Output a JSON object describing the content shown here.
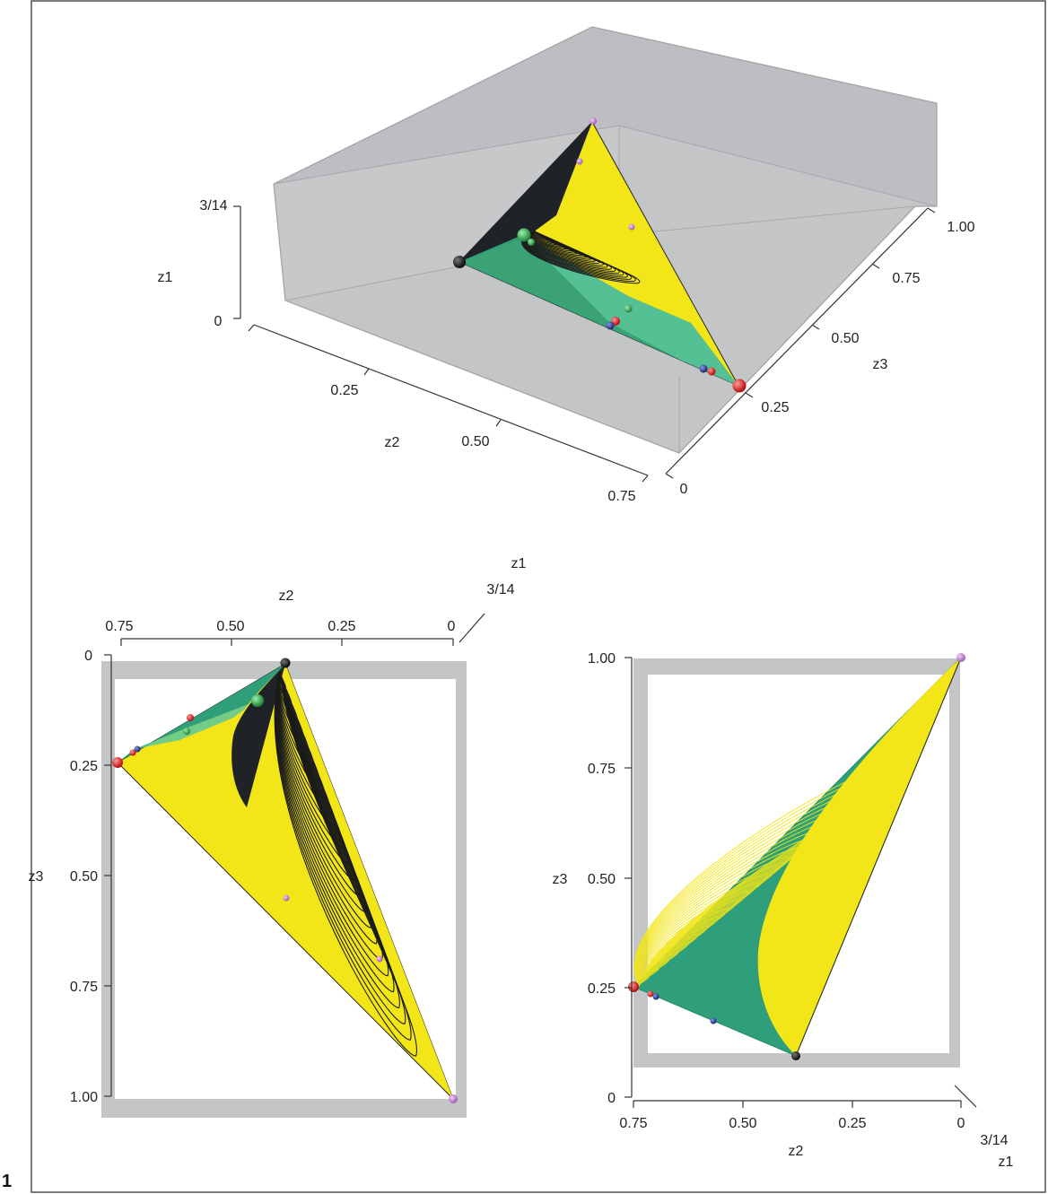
{
  "figure_number": "1",
  "colors": {
    "box_fill": "#c3c5c7",
    "box_edge": "#9fa2a5",
    "surface_yellow": "#f2e619",
    "surface_green": "#2f9e7a",
    "surface_dark": "#1f2328",
    "contour_dark": "#1b1b1b",
    "contour_green": "#1f8c6c",
    "point_black": "#111111",
    "point_red": "#e11a1a",
    "point_blue": "#22338a",
    "point_green": "#27a84a",
    "point_pink": "#c98ad6"
  },
  "panel_3d": {
    "z1_axis": {
      "label": "z1",
      "ticks": [
        "3/14",
        "0"
      ]
    },
    "z2_axis": {
      "label": "z2",
      "ticks": [
        "0.25",
        "0.50",
        "0.75"
      ]
    },
    "z3_axis": {
      "label": "z3",
      "ticks": [
        "0",
        "0.25",
        "0.50",
        "0.75",
        "1.00"
      ]
    }
  },
  "panel_top_view": {
    "z1_axis": {
      "label": "z1",
      "ticks": [
        "3/14"
      ]
    },
    "z2_axis": {
      "label": "z2",
      "ticks": [
        "0.75",
        "0.50",
        "0.25",
        "0"
      ]
    },
    "z3_axis": {
      "label": "z3",
      "ticks": [
        "0",
        "0.25",
        "0.50",
        "0.75",
        "1.00"
      ]
    }
  },
  "panel_side_view": {
    "z1_axis": {
      "label": "z1",
      "ticks": [
        "3/14"
      ]
    },
    "z2_axis": {
      "label": "z2",
      "ticks": [
        "0.75",
        "0.50",
        "0.25",
        "0"
      ]
    },
    "z3_axis": {
      "label": "z3",
      "ticks": [
        "0",
        "0.25",
        "0.50",
        "0.75",
        "1.00"
      ]
    }
  }
}
